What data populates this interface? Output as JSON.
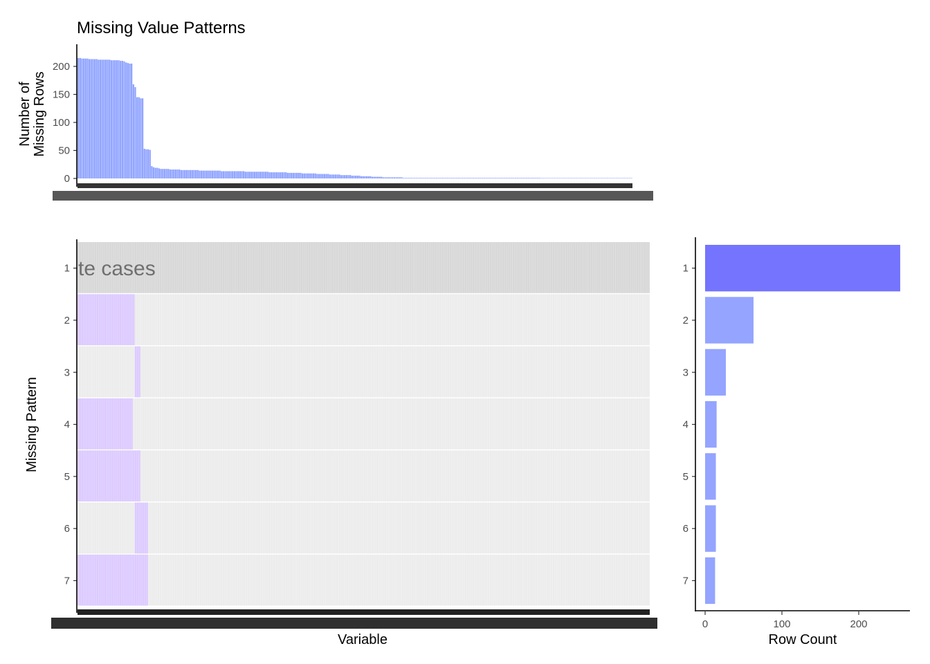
{
  "figure": {
    "title": "Missing Value Patterns"
  },
  "chart_data": [
    {
      "type": "bar",
      "panel": "missing-rows-per-variable",
      "ylabel_line1": "Number of",
      "ylabel_line2": "Missing Rows",
      "ylim": [
        0,
        240
      ],
      "yticks": [
        0,
        50,
        100,
        150,
        200
      ],
      "n_variables": 300,
      "values": [
        215,
        215,
        214,
        214,
        214,
        214,
        213,
        213,
        213,
        213,
        213,
        212,
        212,
        212,
        212,
        212,
        212,
        212,
        211,
        211,
        211,
        211,
        211,
        210,
        210,
        209,
        207,
        206,
        205,
        205,
        168,
        163,
        145,
        145,
        143,
        143,
        53,
        52,
        52,
        51,
        22,
        20,
        19,
        19,
        18,
        17,
        17,
        17,
        17,
        17,
        16,
        16,
        16,
        16,
        16,
        16,
        15,
        15,
        15,
        15,
        15,
        15,
        15,
        15,
        15,
        15,
        14,
        14,
        14,
        14,
        14,
        14,
        14,
        14,
        14,
        14,
        14,
        14,
        13,
        13,
        13,
        13,
        13,
        13,
        13,
        13,
        13,
        13,
        13,
        13,
        13,
        12,
        12,
        12,
        12,
        12,
        12,
        12,
        12,
        12,
        12,
        12,
        12,
        12,
        11,
        11,
        11,
        11,
        11,
        11,
        11,
        11,
        11,
        11,
        10,
        10,
        10,
        10,
        10,
        10,
        10,
        10,
        9,
        9,
        9,
        9,
        9,
        9,
        9,
        9,
        8,
        8,
        8,
        8,
        8,
        8,
        8,
        7,
        7,
        7,
        7,
        7,
        7,
        6,
        6,
        6,
        6,
        6,
        6,
        5,
        5,
        5,
        5,
        5,
        4,
        4,
        4,
        4,
        4,
        4,
        3,
        3,
        3,
        3,
        3,
        3,
        2,
        2,
        2,
        2,
        2,
        2,
        2,
        2,
        2,
        2,
        2,
        1,
        1,
        1,
        1,
        1,
        1,
        1,
        1,
        1,
        1,
        1,
        1,
        1,
        1,
        1,
        1,
        1,
        1,
        1,
        1,
        1,
        1,
        1,
        1,
        1,
        1,
        1,
        1,
        1,
        1,
        1,
        1,
        1,
        1,
        1,
        1,
        1,
        1,
        1,
        1,
        1,
        1,
        1,
        1,
        1,
        1,
        1,
        1,
        1,
        1,
        1,
        1,
        1,
        1,
        1,
        1,
        1,
        1,
        1,
        1,
        1,
        1,
        1,
        1,
        1,
        1,
        1,
        1,
        1,
        1,
        1,
        1,
        1,
        1,
        1,
        0,
        0,
        0,
        0,
        0,
        0,
        0,
        0,
        0,
        0,
        0,
        0,
        0,
        0,
        0,
        0,
        0,
        0,
        0,
        0,
        0,
        0,
        0,
        0,
        0,
        0,
        0,
        0,
        0,
        0,
        0,
        0,
        0,
        0,
        0,
        0,
        0,
        0,
        0,
        0,
        0,
        0,
        0,
        0,
        0,
        0,
        0,
        0,
        0,
        0
      ],
      "color": "#8fa3ff"
    },
    {
      "type": "heatmap",
      "panel": "missing-pattern-matrix",
      "xlabel": "Variable",
      "ylabel": "Missing Pattern",
      "patterns": [
        "1",
        "2",
        "3",
        "4",
        "5",
        "6",
        "7"
      ],
      "overlay_text": "te cases",
      "missing_variable_ranges": [
        [],
        [
          [
            0,
            30
          ]
        ],
        [
          [
            30,
            33
          ]
        ],
        [
          [
            0,
            29
          ]
        ],
        [
          [
            0,
            33
          ]
        ],
        [
          [
            30,
            37
          ]
        ],
        [
          [
            0,
            37
          ]
        ]
      ],
      "complete_cases_pattern": "1",
      "colors": {
        "missing": "#dccaff",
        "present": "#ececec",
        "complete_row": "#d7d7d7",
        "overlay_text": "#6f6f6f"
      }
    },
    {
      "type": "bar",
      "orientation": "horizontal",
      "panel": "pattern-row-counts",
      "xlabel": "Row Count",
      "categories": [
        "1",
        "2",
        "3",
        "4",
        "5",
        "6",
        "7"
      ],
      "values": [
        254,
        63,
        27,
        15,
        14,
        14,
        13
      ],
      "xlim": [
        -12,
        262
      ],
      "xticks": [
        0,
        100,
        200
      ],
      "colors": {
        "complete": "#7474ff",
        "incomplete": "#94a4ff"
      }
    }
  ]
}
